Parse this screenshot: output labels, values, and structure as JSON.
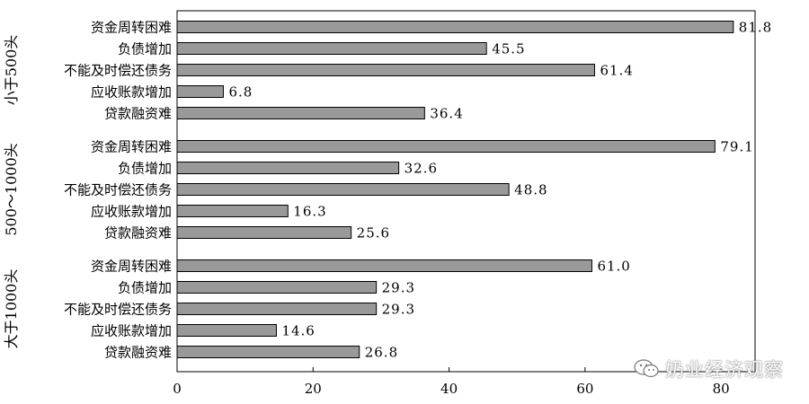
{
  "chart_data": {
    "type": "bar",
    "orientation": "horizontal",
    "title": "",
    "xlabel": "",
    "ylabel": "",
    "xlim": [
      0,
      85
    ],
    "x_ticks": [
      0,
      20,
      40,
      60,
      80
    ],
    "grid": false,
    "bar_color": "#999999",
    "bar_stroke": "#000000",
    "groups": [
      {
        "name": "小于500头",
        "categories": [
          "资金周转困难",
          "负债增加",
          "不能及时偿还债务",
          "应收账款增加",
          "贷款融资难"
        ],
        "values": [
          81.8,
          45.5,
          61.4,
          6.8,
          36.4
        ],
        "value_labels": [
          "81.8",
          "45.5",
          "61.4",
          "6.8",
          "36.4"
        ]
      },
      {
        "name": "500～1000头",
        "categories": [
          "资金周转困难",
          "负债增加",
          "不能及时偿还债务",
          "应收账款增加",
          "贷款融资难"
        ],
        "values": [
          79.1,
          32.6,
          48.8,
          16.3,
          25.6
        ],
        "value_labels": [
          "79.1",
          "32.6",
          "48.8",
          "16.3",
          "25.6"
        ]
      },
      {
        "name": "大于1000头",
        "categories": [
          "资金周转困难",
          "负债增加",
          "不能及时偿还债务",
          "应收账款增加",
          "贷款融资难"
        ],
        "values": [
          61.0,
          29.3,
          29.3,
          14.6,
          26.8
        ],
        "value_labels": [
          "61.0",
          "29.3",
          "29.3",
          "14.6",
          "26.8"
        ]
      }
    ]
  },
  "watermark": {
    "text": "奶业经济观察",
    "icon": "wechat-icon"
  }
}
